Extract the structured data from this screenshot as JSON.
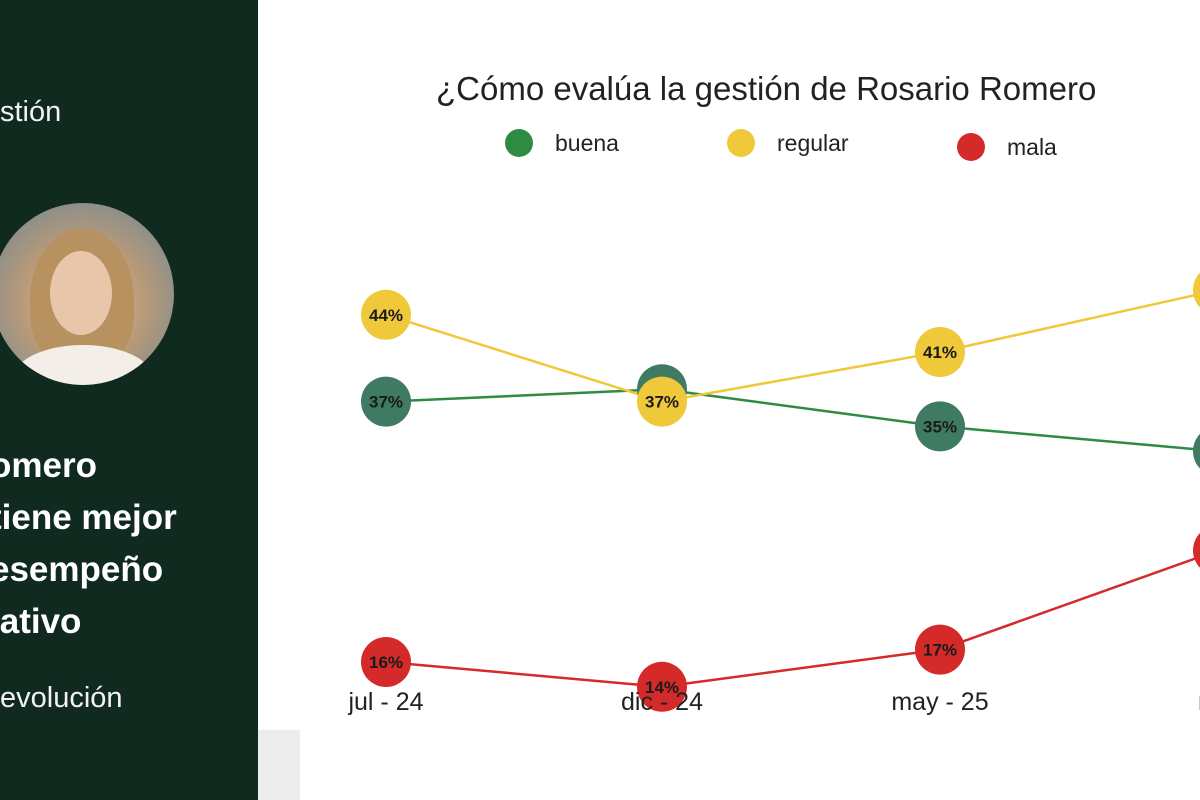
{
  "sidebar": {
    "top_text": "stión",
    "headline": [
      "omero",
      "tiene mejor",
      "esempeño",
      "lativo"
    ],
    "bottom_text": "evolución"
  },
  "chart_data": {
    "type": "line",
    "title": "¿Cómo evalúa la gestión de Rosario Romero",
    "categories": [
      "jul - 24",
      "dic - 24",
      "may - 25",
      "ma"
    ],
    "series": [
      {
        "name": "buena",
        "color": "#3f7a62",
        "line_color": "#2e8b44",
        "values": [
          37,
          38,
          35,
          33
        ],
        "labels": [
          "37%",
          "38%",
          "35%",
          ""
        ]
      },
      {
        "name": "regular",
        "color": "#efc93a",
        "line_color": "#efc93a",
        "values": [
          44,
          37,
          41,
          46
        ],
        "labels": [
          "44%",
          "37%",
          "41%",
          ""
        ]
      },
      {
        "name": "mala",
        "color": "#d42a2a",
        "line_color": "#d42a2a",
        "values": [
          16,
          14,
          17,
          25
        ],
        "labels": [
          "16%",
          "14%",
          "17%",
          ""
        ]
      }
    ],
    "legend": [
      {
        "name": "buena",
        "color": "#2e8b44"
      },
      {
        "name": "regular",
        "color": "#efc93a"
      },
      {
        "name": "mala",
        "color": "#d42a2a"
      }
    ],
    "legend_position": "top",
    "grid": false
  }
}
